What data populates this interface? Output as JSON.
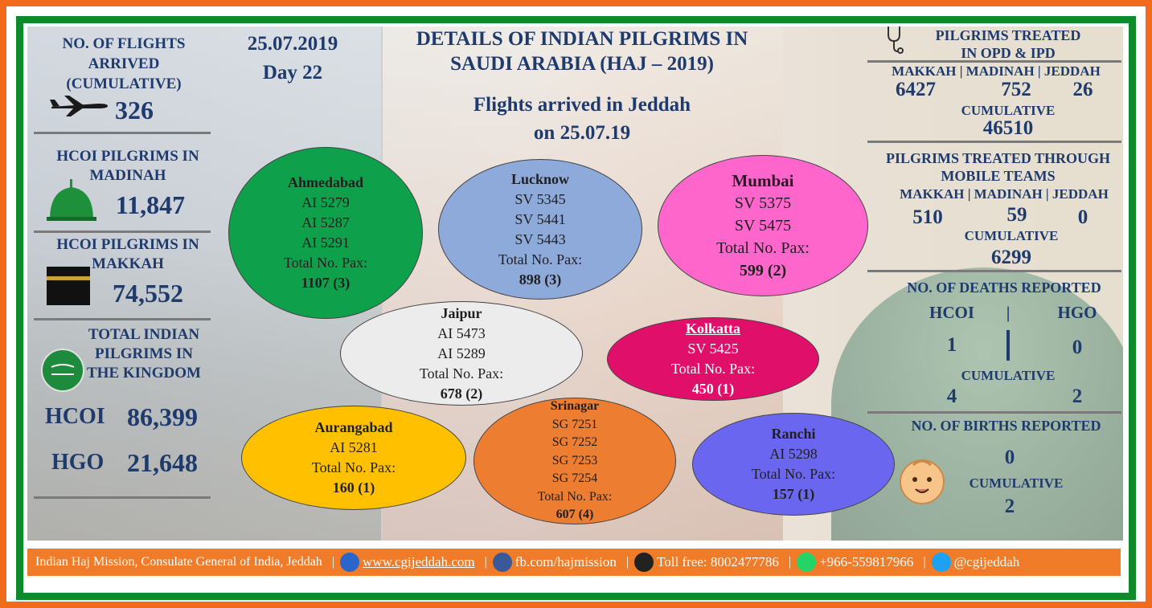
{
  "header": {
    "date": "25.07.2019",
    "day": "Day 22",
    "title_line1": "DETAILS OF INDIAN PILGRIMS IN",
    "title_line2": "SAUDI ARABIA (HAJ – 2019)",
    "flights_heading_line1": "Flights arrived in Jeddah",
    "flights_heading_line2": "on 25.07.19"
  },
  "left": {
    "flights_label_1": "NO. OF FLIGHTS",
    "flights_label_2": "ARRIVED",
    "flights_label_3": "(CUMULATIVE)",
    "flights_value": "326",
    "madinah_label_1": "HCOI PILGRIMS IN",
    "madinah_label_2": "MADINAH",
    "madinah_value": "11,847",
    "makkah_label_1": "HCOI PILGRIMS IN",
    "makkah_label_2": "MAKKAH",
    "makkah_value": "74,552",
    "total_label_1": "TOTAL INDIAN",
    "total_label_2": "PILGRIMS IN",
    "total_label_3": "THE KINGDOM",
    "hcoi_label": "HCOI",
    "hcoi_value": "86,399",
    "hgo_label": "HGO",
    "hgo_value": "21,648"
  },
  "flights": [
    {
      "city": "Ahmedabad",
      "codes": [
        "AI 5279",
        "AI 5287",
        "AI 5291"
      ],
      "pax_label": "Total No. Pax:",
      "pax": "1107 (3)",
      "color": "#0ea04a"
    },
    {
      "city": "Lucknow",
      "codes": [
        "SV 5345",
        "SV 5441",
        "SV 5443"
      ],
      "pax_label": "Total No. Pax:",
      "pax": "898 (3)",
      "color": "#8eaadb"
    },
    {
      "city": "Mumbai",
      "codes": [
        "SV 5375",
        "SV 5475"
      ],
      "pax_label": "Total No. Pax:",
      "pax": "599 (2)",
      "color": "#ff66cc"
    },
    {
      "city": "Jaipur",
      "codes": [
        "AI 5473",
        "AI 5289"
      ],
      "pax_label": "Total No. Pax:",
      "pax": "678 (2)",
      "color": "#ececec"
    },
    {
      "city": "Kolkatta",
      "codes": [
        "SV 5425"
      ],
      "pax_label": "Total No. Pax:",
      "pax": "450 (1)",
      "color": "#e0106a"
    },
    {
      "city": "Aurangabad",
      "codes": [
        "AI 5281"
      ],
      "pax_label": "Total No. Pax:",
      "pax": "160 (1)",
      "color": "#ffc000"
    },
    {
      "city": "Srinagar",
      "codes": [
        "SG 7251",
        "SG 7252",
        "SG 7253",
        "SG 7254"
      ],
      "pax_label": "Total No. Pax:",
      "pax": "607 (4)",
      "color": "#ed7d31"
    },
    {
      "city": "Ranchi",
      "codes": [
        "AI 5298"
      ],
      "pax_label": "Total No. Pax:",
      "pax": "157 (1)",
      "color": "#6b66f0"
    }
  ],
  "right": {
    "opd_title_1": "PILGRIMS TREATED",
    "opd_title_2": "IN OPD & IPD",
    "opd_cities": "MAKKAH | MADINAH | JEDDAH",
    "opd_makkah": "6427",
    "opd_madinah": "752",
    "opd_jeddah": "26",
    "opd_cum_label": "CUMULATIVE",
    "opd_cum_value": "46510",
    "mob_title_1": "PILGRIMS TREATED THROUGH",
    "mob_title_2": "MOBILE TEAMS",
    "mob_cities": "MAKKAH | MADINAH | JEDDAH",
    "mob_makkah": "510",
    "mob_madinah": "59",
    "mob_jeddah": "0",
    "mob_cum_label": "CUMULATIVE",
    "mob_cum_value": "6299",
    "deaths_title": "NO. OF DEATHS REPORTED",
    "deaths_hcoi_label": "HCOI",
    "deaths_sep": "|",
    "deaths_hgo_label": "HGO",
    "deaths_hcoi": "1",
    "deaths_hgo": "0",
    "deaths_cum_label": "CUMULATIVE",
    "deaths_cum_hcoi": "4",
    "deaths_cum_hgo": "2",
    "births_title": "NO. OF BIRTHS REPORTED",
    "births_value": "0",
    "births_cum_label": "CUMULATIVE",
    "births_cum_value": "2"
  },
  "footer": {
    "org": "Indian Haj Mission, Consulate General of India, Jeddah",
    "website": "www.cgijeddah.com",
    "facebook": "fb.com/hajmission",
    "tollfree": "Toll free: 8002477786",
    "whatsapp": "+966-559817966",
    "twitter": "@cgijeddah"
  },
  "colors": {
    "heading": "#1f3a6d",
    "footer_bg": "#f07c29",
    "outer_border": "#f26b1d",
    "inner_border": "#0e8a2a"
  }
}
